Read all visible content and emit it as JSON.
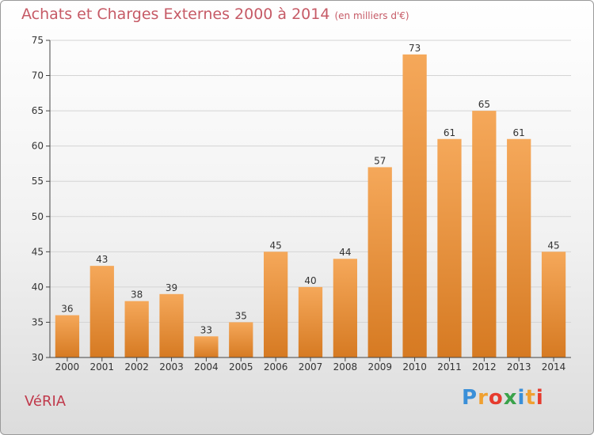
{
  "title": "Achats et Charges Externes 2000 à 2014",
  "unit": "(en milliers d'€)",
  "commune": "VéRIA",
  "logo": {
    "text": "Proxiti",
    "letters": [
      {
        "ch": "P",
        "color": "#3a8fd8"
      },
      {
        "ch": "r",
        "color": "#f0a030"
      },
      {
        "ch": "o",
        "color": "#e63b2e"
      },
      {
        "ch": "x",
        "color": "#3aa24a"
      },
      {
        "ch": "i",
        "color": "#3a8fd8"
      },
      {
        "ch": "t",
        "color": "#f0a030"
      },
      {
        "ch": "i",
        "color": "#e63b2e"
      }
    ]
  },
  "colors": {
    "bar_light": "#f5a85a",
    "bar_dark": "#d67a22",
    "title": "#c65a66"
  },
  "chart_data": {
    "type": "bar",
    "title": "Achats et Charges Externes 2000 à 2014",
    "subtitle": "(en milliers d'€)",
    "categories": [
      "2000",
      "2001",
      "2002",
      "2003",
      "2004",
      "2005",
      "2006",
      "2007",
      "2008",
      "2009",
      "2010",
      "2011",
      "2012",
      "2013",
      "2014"
    ],
    "values": [
      36,
      43,
      38,
      39,
      33,
      35,
      45,
      40,
      44,
      57,
      73,
      61,
      65,
      61,
      45
    ],
    "ylim": [
      30,
      75
    ],
    "yticks": [
      30,
      35,
      40,
      45,
      50,
      55,
      60,
      65,
      70,
      75
    ],
    "grid": true,
    "xlabel": "",
    "ylabel": ""
  }
}
